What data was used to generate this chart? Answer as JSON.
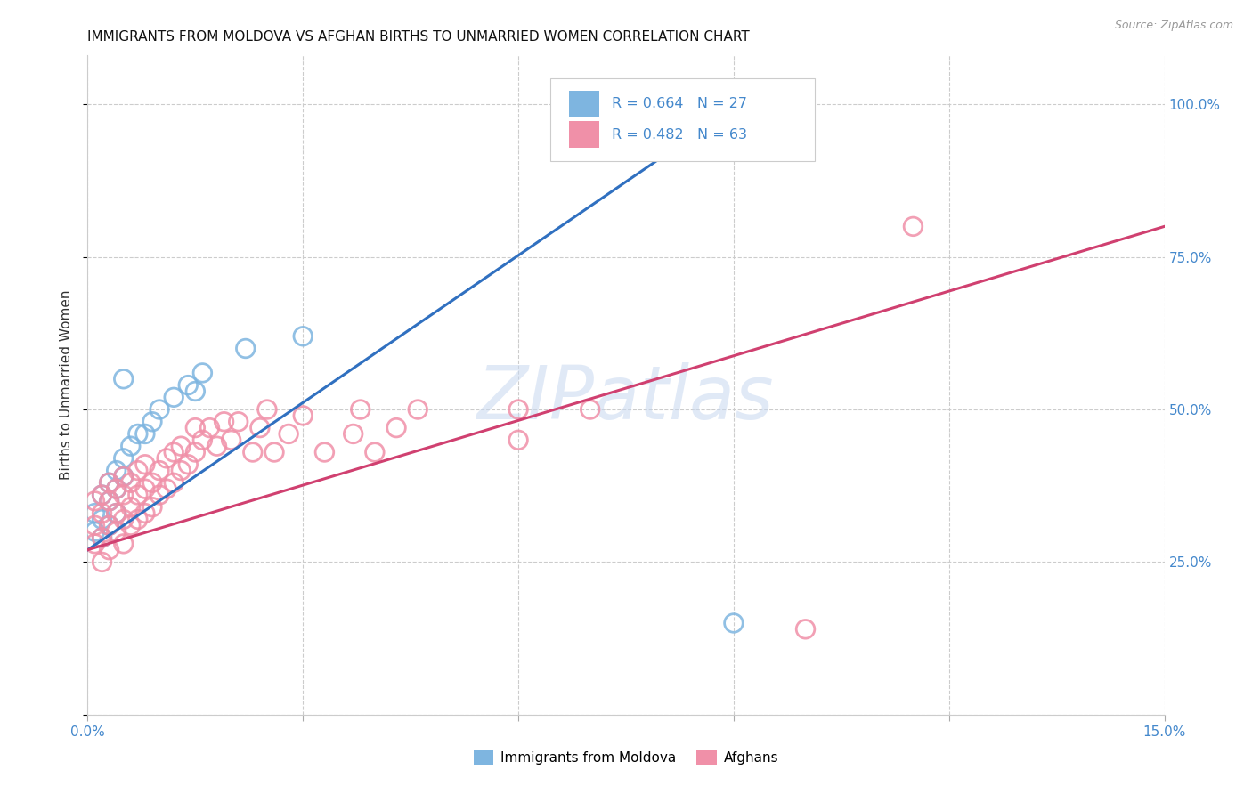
{
  "title": "IMMIGRANTS FROM MOLDOVA VS AFGHAN BIRTHS TO UNMARRIED WOMEN CORRELATION CHART",
  "source": "Source: ZipAtlas.com",
  "ylabel": "Births to Unmarried Women",
  "xlim": [
    0.0,
    0.15
  ],
  "ylim": [
    0.0,
    1.08
  ],
  "moldova_color": "#7eb5e0",
  "afghan_color": "#f090a8",
  "moldova_line_color": "#3070c0",
  "afghan_line_color": "#d04070",
  "legend_R1": "R = 0.664",
  "legend_N1": "N = 27",
  "legend_R2": "R = 0.482",
  "legend_N2": "N = 63",
  "legend_label1": "Immigrants from Moldova",
  "legend_label2": "Afghans",
  "background_color": "#ffffff",
  "moldova_x": [
    0.001,
    0.001,
    0.002,
    0.002,
    0.002,
    0.003,
    0.003,
    0.003,
    0.004,
    0.004,
    0.004,
    0.005,
    0.005,
    0.006,
    0.007,
    0.008,
    0.009,
    0.01,
    0.012,
    0.014,
    0.016,
    0.022,
    0.03,
    0.015,
    0.005,
    0.09,
    0.09
  ],
  "moldova_y": [
    0.3,
    0.33,
    0.29,
    0.32,
    0.36,
    0.31,
    0.35,
    0.38,
    0.33,
    0.37,
    0.4,
    0.39,
    0.42,
    0.44,
    0.46,
    0.46,
    0.48,
    0.5,
    0.52,
    0.54,
    0.56,
    0.6,
    0.62,
    0.53,
    0.55,
    0.15,
    1.0
  ],
  "afghan_x": [
    0.001,
    0.001,
    0.001,
    0.002,
    0.002,
    0.002,
    0.002,
    0.003,
    0.003,
    0.003,
    0.003,
    0.004,
    0.004,
    0.004,
    0.005,
    0.005,
    0.005,
    0.005,
    0.006,
    0.006,
    0.006,
    0.007,
    0.007,
    0.007,
    0.008,
    0.008,
    0.008,
    0.009,
    0.009,
    0.01,
    0.01,
    0.011,
    0.011,
    0.012,
    0.012,
    0.013,
    0.013,
    0.014,
    0.015,
    0.015,
    0.016,
    0.017,
    0.018,
    0.019,
    0.02,
    0.021,
    0.023,
    0.024,
    0.025,
    0.026,
    0.028,
    0.03,
    0.033,
    0.037,
    0.038,
    0.04,
    0.043,
    0.046,
    0.06,
    0.06,
    0.07,
    0.1,
    0.115
  ],
  "afghan_y": [
    0.28,
    0.31,
    0.35,
    0.25,
    0.29,
    0.33,
    0.36,
    0.27,
    0.31,
    0.35,
    0.38,
    0.3,
    0.33,
    0.37,
    0.28,
    0.32,
    0.36,
    0.39,
    0.31,
    0.34,
    0.38,
    0.32,
    0.36,
    0.4,
    0.33,
    0.37,
    0.41,
    0.34,
    0.38,
    0.36,
    0.4,
    0.37,
    0.42,
    0.38,
    0.43,
    0.4,
    0.44,
    0.41,
    0.43,
    0.47,
    0.45,
    0.47,
    0.44,
    0.48,
    0.45,
    0.48,
    0.43,
    0.47,
    0.5,
    0.43,
    0.46,
    0.49,
    0.43,
    0.46,
    0.5,
    0.43,
    0.47,
    0.5,
    0.45,
    0.5,
    0.5,
    0.14,
    0.8
  ],
  "moldova_line_x0": 0.0,
  "moldova_line_y0": 0.27,
  "moldova_line_x1": 0.092,
  "moldova_line_y1": 1.01,
  "afghan_line_x0": 0.0,
  "afghan_line_y0": 0.27,
  "afghan_line_x1": 0.15,
  "afghan_line_y1": 0.8
}
